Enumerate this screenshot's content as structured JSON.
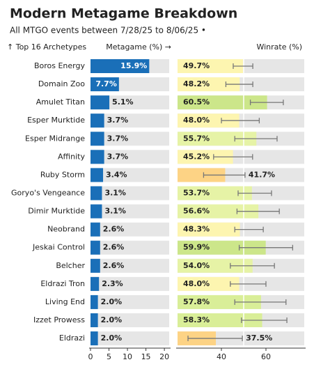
{
  "title": "Modern Metagame Breakdown",
  "subtitle": "All MTGO events between 7/28/25 to 8/06/25 •",
  "chart_data": [
    {
      "type": "bar",
      "orientation": "horizontal",
      "y_label": "↑ Top 16 Archetypes",
      "x_label": "Metagame (%) →",
      "categories": [
        "Boros Energy",
        "Domain Zoo",
        "Amulet Titan",
        "Esper Murktide",
        "Esper Midrange",
        "Affinity",
        "Ruby Storm",
        "Goryo's Vengeance",
        "Dimir Murktide",
        "Neobrand",
        "Jeskai Control",
        "Belcher",
        "Eldrazi Tron",
        "Living End",
        "Izzet Prowess",
        "Eldrazi"
      ],
      "values": [
        15.9,
        7.7,
        5.1,
        3.7,
        3.7,
        3.7,
        3.4,
        3.1,
        3.1,
        2.6,
        2.6,
        2.6,
        2.3,
        2.0,
        2.0,
        2.0
      ],
      "value_labels": [
        "15.9%",
        "7.7%",
        "5.1%",
        "3.7%",
        "3.7%",
        "3.7%",
        "3.4%",
        "3.1%",
        "3.1%",
        "2.6%",
        "2.6%",
        "2.6%",
        "2.3%",
        "2.0%",
        "2.0%",
        "2.0%"
      ],
      "color": "#1a6fb8",
      "xlim": [
        0,
        21.3
      ],
      "xticks": [
        0,
        5,
        10,
        15,
        20
      ]
    },
    {
      "type": "errorbar-bar",
      "orientation": "horizontal",
      "x_label": "Winrate (%)",
      "values": [
        49.7,
        48.2,
        60.5,
        48.0,
        55.7,
        45.2,
        41.7,
        53.7,
        56.6,
        48.3,
        59.9,
        54.0,
        48.0,
        57.8,
        58.3,
        37.5
      ],
      "value_labels": [
        "49.7%",
        "48.2%",
        "60.5%",
        "48.0%",
        "55.7%",
        "45.2%",
        "41.7%",
        "53.7%",
        "56.6%",
        "48.3%",
        "59.9%",
        "54.0%",
        "48.0%",
        "57.8%",
        "58.3%",
        "37.5%"
      ],
      "error_low": [
        45.3,
        42,
        53,
        40,
        46,
        36.5,
        32,
        47.5,
        47,
        46,
        48,
        44,
        44,
        46,
        49,
        25
      ],
      "error_high": [
        54.1,
        54.1,
        67.8,
        57,
        65,
        54,
        50.6,
        62.5,
        66,
        58.8,
        72,
        63.8,
        60,
        69,
        69.4,
        49.4
      ],
      "colors": [
        "#fdf5b0",
        "#fdf5b0",
        "#cce68a",
        "#fdf5b0",
        "#e6f3a6",
        "#fdf5b0",
        "#fdd385",
        "#e6f3a6",
        "#e6f3a6",
        "#fdf5b0",
        "#cce68a",
        "#e6f3a6",
        "#fdf5b0",
        "#d9ee98",
        "#d9ee98",
        "#fdd385"
      ],
      "reference_line": 50,
      "xlim": [
        20.3,
        77.2
      ],
      "xticks": [
        40,
        60
      ]
    }
  ]
}
